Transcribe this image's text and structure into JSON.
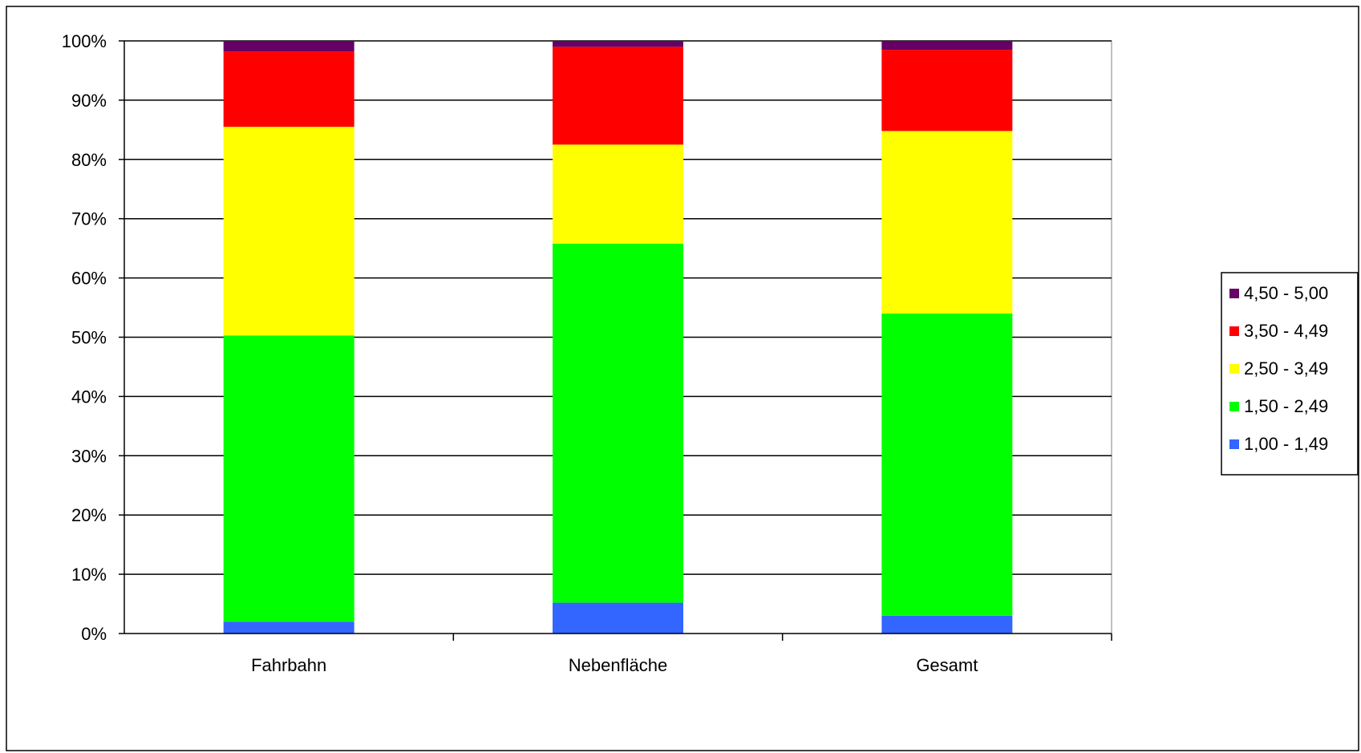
{
  "chart_data": {
    "type": "bar",
    "stacked": true,
    "normalized": "percent",
    "title": "",
    "xlabel": "",
    "ylabel": "",
    "categories": [
      "Fahrbahn",
      "Nebenfläche",
      "Gesamt"
    ],
    "ylim": [
      0,
      100
    ],
    "yticks": [
      "0%",
      "10%",
      "20%",
      "30%",
      "40%",
      "50%",
      "60%",
      "70%",
      "80%",
      "90%",
      "100%"
    ],
    "grid": "horizontal",
    "legend_placement": "right",
    "series": [
      {
        "name": "1,00 - 1,49",
        "color": "#3366ff",
        "values": [
          2,
          5.2,
          3
        ]
      },
      {
        "name": "1,50 - 2,49",
        "color": "#00ff00",
        "values": [
          48.3,
          60.6,
          51
        ]
      },
      {
        "name": "2,50 - 3,49",
        "color": "#ffff00",
        "values": [
          35.2,
          16.7,
          30.8
        ]
      },
      {
        "name": "3,50 - 4,49",
        "color": "#ff0000",
        "values": [
          12.7,
          16.5,
          13.7
        ]
      },
      {
        "name": "4,50 - 5,00",
        "color": "#660066",
        "values": [
          1.8,
          1,
          1.5
        ]
      }
    ],
    "legend_order": [
      "4,50 - 5,00",
      "3,50 - 4,49",
      "2,50 - 3,49",
      "1,50 - 2,49",
      "1,00 - 1,49"
    ]
  }
}
